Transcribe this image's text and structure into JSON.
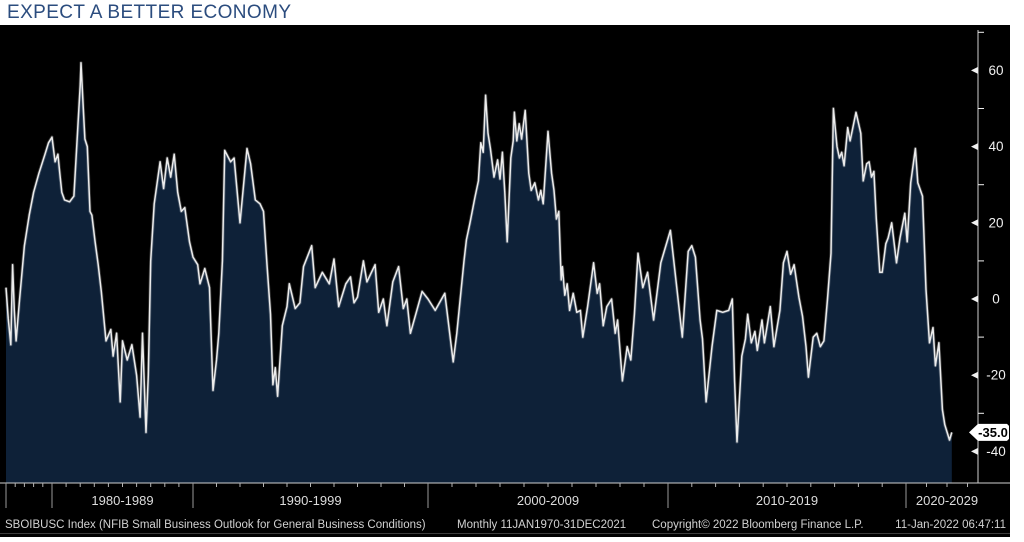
{
  "header": {
    "title": "EXPECT A BETTER ECONOMY"
  },
  "footer": {
    "security_info": "SBOIBUSC Index (NFIB Small Business Outlook for General Business Conditions)",
    "periodicity": "Monthly 11JAN1970-31DEC2021",
    "copyright": "Copyright© 2022 Bloomberg Finance L.P.",
    "timestamp": "11-Jan-2022 06:47:11"
  },
  "colors": {
    "title_blue": "#2b4c7e",
    "background": "#000000",
    "area_fill": "#0e2138",
    "line": "#ececec",
    "line_glow": "rgba(255,255,255,0.22)",
    "axis": "#cfcfcf",
    "tick": "#b5b5b5",
    "divider": "#9a9a9a",
    "tick_label": "#f0f0f0",
    "decade_label": "#dcdcdc",
    "tag_bg": "#ffffff",
    "tag_text": "#000000"
  },
  "chart_data": {
    "type": "area",
    "title": "EXPECT A BETTER ECONOMY",
    "xlabel": "",
    "ylabel": "",
    "grid": "off",
    "legend": "none",
    "x_axis": {
      "range_label": "11JAN1970-31DEC2021",
      "decade_sections": [
        "1980-1989",
        "1990-1999",
        "2000-2009",
        "2010-2019",
        "2020-2029"
      ],
      "divider_dates": [
        1974.75,
        1980,
        1990,
        2000,
        2010,
        2020
      ]
    },
    "y_axis": {
      "major_ticks": [
        60,
        40,
        20,
        0,
        -20,
        -40
      ],
      "minor_ticks": [
        70,
        50,
        30,
        10,
        -10,
        -30
      ],
      "ylim": [
        -48,
        71
      ]
    },
    "last_value": -35.0,
    "last_value_label": "-35.0",
    "series": [
      {
        "name": "SBOIBUSC Index (NFIB Small Business Outlook for General Business Conditions)",
        "points": [
          [
            1974.75,
            3
          ],
          [
            1975.0,
            -5
          ],
          [
            1975.3,
            -12
          ],
          [
            1975.5,
            9
          ],
          [
            1975.7,
            -3
          ],
          [
            1975.9,
            -11
          ],
          [
            1976.3,
            0
          ],
          [
            1976.85,
            14
          ],
          [
            1977.4,
            22
          ],
          [
            1977.9,
            28
          ],
          [
            1978.5,
            33
          ],
          [
            1979.2,
            38
          ],
          [
            1979.6,
            41
          ],
          [
            1980.0,
            42.5
          ],
          [
            1980.4,
            36
          ],
          [
            1980.75,
            38
          ],
          [
            1981.0,
            33
          ],
          [
            1981.25,
            28
          ],
          [
            1981.6,
            26
          ],
          [
            1982.25,
            25.5
          ],
          [
            1982.8,
            27
          ],
          [
            1983.3,
            45
          ],
          [
            1983.6,
            56
          ],
          [
            1983.7,
            62
          ],
          [
            1984.0,
            50
          ],
          [
            1984.2,
            42
          ],
          [
            1984.5,
            40
          ],
          [
            1984.85,
            23
          ],
          [
            1985.1,
            22
          ],
          [
            1985.5,
            15
          ],
          [
            1985.9,
            9
          ],
          [
            1986.1,
            2
          ],
          [
            1986.3,
            -11
          ],
          [
            1986.5,
            -8
          ],
          [
            1986.6,
            -15
          ],
          [
            1986.75,
            -9
          ],
          [
            1986.9,
            -27
          ],
          [
            1987.0,
            -11
          ],
          [
            1987.2,
            -16
          ],
          [
            1987.4,
            -12
          ],
          [
            1987.6,
            -20
          ],
          [
            1987.75,
            -31
          ],
          [
            1987.85,
            -9
          ],
          [
            1988.0,
            -35
          ],
          [
            1988.1,
            -20
          ],
          [
            1988.2,
            10
          ],
          [
            1988.35,
            25
          ],
          [
            1988.6,
            36
          ],
          [
            1988.75,
            29
          ],
          [
            1988.9,
            37
          ],
          [
            1989.05,
            32
          ],
          [
            1989.2,
            38
          ],
          [
            1989.35,
            28
          ],
          [
            1989.5,
            23
          ],
          [
            1989.65,
            24
          ],
          [
            1989.85,
            15
          ],
          [
            1990.0,
            11
          ],
          [
            1990.2,
            9
          ],
          [
            1990.3,
            4
          ],
          [
            1990.5,
            8
          ],
          [
            1990.7,
            3
          ],
          [
            1990.85,
            -24
          ],
          [
            1991.0,
            -16
          ],
          [
            1991.1,
            -9
          ],
          [
            1991.25,
            10
          ],
          [
            1991.35,
            39
          ],
          [
            1991.6,
            36
          ],
          [
            1991.75,
            37
          ],
          [
            1992.0,
            20
          ],
          [
            1992.3,
            39.5
          ],
          [
            1992.45,
            35.5
          ],
          [
            1992.65,
            26
          ],
          [
            1992.85,
            25
          ],
          [
            1993.0,
            23
          ],
          [
            1993.15,
            9
          ],
          [
            1993.3,
            -4
          ],
          [
            1993.4,
            -22.5
          ],
          [
            1993.5,
            -18
          ],
          [
            1993.6,
            -25.5
          ],
          [
            1993.8,
            -7
          ],
          [
            1994.0,
            -2
          ],
          [
            1994.1,
            4
          ],
          [
            1994.35,
            -2.5
          ],
          [
            1994.55,
            -1
          ],
          [
            1994.7,
            8.5
          ],
          [
            1995.05,
            14
          ],
          [
            1995.2,
            3
          ],
          [
            1995.5,
            7
          ],
          [
            1995.8,
            4
          ],
          [
            1996.0,
            10.5
          ],
          [
            1996.2,
            -2
          ],
          [
            1996.5,
            4
          ],
          [
            1996.7,
            5.8
          ],
          [
            1996.85,
            -1
          ],
          [
            1997.0,
            0.5
          ],
          [
            1997.25,
            10
          ],
          [
            1997.4,
            4.5
          ],
          [
            1997.75,
            9
          ],
          [
            1997.9,
            -3.5
          ],
          [
            1998.1,
            0
          ],
          [
            1998.25,
            -7
          ],
          [
            1998.5,
            4.5
          ],
          [
            1998.75,
            8.5
          ],
          [
            1998.95,
            -2.5
          ],
          [
            1999.1,
            0
          ],
          [
            1999.25,
            -9
          ],
          [
            1999.5,
            -3.5
          ],
          [
            1999.75,
            2
          ],
          [
            2000.0,
            0
          ],
          [
            2000.3,
            -3
          ],
          [
            2000.7,
            1.5
          ],
          [
            2001.05,
            -16.5
          ],
          [
            2001.2,
            -9
          ],
          [
            2001.5,
            10
          ],
          [
            2001.6,
            15.5
          ],
          [
            2001.75,
            20
          ],
          [
            2001.95,
            26.5
          ],
          [
            2002.1,
            31
          ],
          [
            2002.2,
            41
          ],
          [
            2002.3,
            38.5
          ],
          [
            2002.4,
            53.5
          ],
          [
            2002.5,
            43.5
          ],
          [
            2002.6,
            39.5
          ],
          [
            2002.75,
            32
          ],
          [
            2002.9,
            36.5
          ],
          [
            2003.0,
            31.5
          ],
          [
            2003.1,
            38.5
          ],
          [
            2003.2,
            28
          ],
          [
            2003.3,
            15
          ],
          [
            2003.45,
            37
          ],
          [
            2003.55,
            41.5
          ],
          [
            2003.6,
            49
          ],
          [
            2003.7,
            41.5
          ],
          [
            2003.8,
            46
          ],
          [
            2003.9,
            42
          ],
          [
            2004.05,
            49.5
          ],
          [
            2004.2,
            33
          ],
          [
            2004.3,
            28.5
          ],
          [
            2004.45,
            30.5
          ],
          [
            2004.6,
            26
          ],
          [
            2004.7,
            28.5
          ],
          [
            2004.8,
            25
          ],
          [
            2005.0,
            44
          ],
          [
            2005.15,
            33
          ],
          [
            2005.25,
            28.5
          ],
          [
            2005.35,
            21
          ],
          [
            2005.45,
            23
          ],
          [
            2005.55,
            5
          ],
          [
            2005.6,
            8.5
          ],
          [
            2005.7,
            1
          ],
          [
            2005.8,
            4
          ],
          [
            2005.9,
            -3
          ],
          [
            2006.05,
            1.5
          ],
          [
            2006.2,
            -3.5
          ],
          [
            2006.35,
            -3
          ],
          [
            2006.45,
            -10
          ],
          [
            2006.65,
            -2
          ],
          [
            2006.9,
            9.5
          ],
          [
            2007.05,
            1.5
          ],
          [
            2007.15,
            4
          ],
          [
            2007.3,
            -7
          ],
          [
            2007.45,
            -2
          ],
          [
            2007.65,
            0
          ],
          [
            2007.8,
            -9
          ],
          [
            2007.9,
            -5.5
          ],
          [
            2008.1,
            -21.5
          ],
          [
            2008.3,
            -12.5
          ],
          [
            2008.45,
            -16
          ],
          [
            2008.6,
            -4
          ],
          [
            2008.75,
            12
          ],
          [
            2008.95,
            3
          ],
          [
            2009.15,
            7
          ],
          [
            2009.4,
            -5.5
          ],
          [
            2009.7,
            9.5
          ],
          [
            2010.1,
            18
          ],
          [
            2010.6,
            -10
          ],
          [
            2010.85,
            12.5
          ],
          [
            2011.0,
            14
          ],
          [
            2011.15,
            11
          ],
          [
            2011.35,
            -5.5
          ],
          [
            2011.45,
            -10.5
          ],
          [
            2011.6,
            -27
          ],
          [
            2011.85,
            -12.5
          ],
          [
            2012.05,
            -3
          ],
          [
            2012.3,
            -3.5
          ],
          [
            2012.55,
            -3
          ],
          [
            2012.7,
            0
          ],
          [
            2012.8,
            -21.5
          ],
          [
            2012.9,
            -37.5
          ],
          [
            2013.1,
            -15
          ],
          [
            2013.25,
            -10.5
          ],
          [
            2013.35,
            -4
          ],
          [
            2013.5,
            -11.5
          ],
          [
            2013.65,
            -8.5
          ],
          [
            2013.75,
            -13.5
          ],
          [
            2013.95,
            -5.5
          ],
          [
            2014.05,
            -11.5
          ],
          [
            2014.3,
            -2
          ],
          [
            2014.45,
            -12.5
          ],
          [
            2014.7,
            -3
          ],
          [
            2014.85,
            9.5
          ],
          [
            2015.0,
            12.5
          ],
          [
            2015.15,
            6.5
          ],
          [
            2015.3,
            9
          ],
          [
            2015.5,
            0.5
          ],
          [
            2015.65,
            -4.5
          ],
          [
            2015.8,
            -12.5
          ],
          [
            2015.9,
            -20.5
          ],
          [
            2016.1,
            -10
          ],
          [
            2016.25,
            -9
          ],
          [
            2016.4,
            -12.5
          ],
          [
            2016.55,
            -11
          ],
          [
            2016.7,
            0
          ],
          [
            2016.85,
            12
          ],
          [
            2016.95,
            50
          ],
          [
            2017.1,
            40
          ],
          [
            2017.2,
            37
          ],
          [
            2017.3,
            38.5
          ],
          [
            2017.4,
            35
          ],
          [
            2017.55,
            45
          ],
          [
            2017.65,
            41.5
          ],
          [
            2017.9,
            49
          ],
          [
            2018.1,
            43.5
          ],
          [
            2018.2,
            31
          ],
          [
            2018.35,
            35.5
          ],
          [
            2018.45,
            36
          ],
          [
            2018.55,
            32
          ],
          [
            2018.65,
            33.5
          ],
          [
            2018.75,
            21
          ],
          [
            2018.9,
            7
          ],
          [
            2019.0,
            7
          ],
          [
            2019.15,
            14.5
          ],
          [
            2019.25,
            16
          ],
          [
            2019.4,
            20
          ],
          [
            2019.6,
            9.5
          ],
          [
            2019.75,
            16
          ],
          [
            2019.95,
            22.5
          ],
          [
            2020.05,
            15
          ],
          [
            2020.2,
            30.5
          ],
          [
            2020.4,
            39.5
          ],
          [
            2020.5,
            30.5
          ],
          [
            2020.7,
            27
          ],
          [
            2020.85,
            2.5
          ],
          [
            2021.0,
            -11.5
          ],
          [
            2021.15,
            -7.5
          ],
          [
            2021.25,
            -17.5
          ],
          [
            2021.4,
            -11.5
          ],
          [
            2021.55,
            -29
          ],
          [
            2021.65,
            -33
          ],
          [
            2021.85,
            -37
          ],
          [
            2021.95,
            -35
          ]
        ]
      }
    ]
  }
}
